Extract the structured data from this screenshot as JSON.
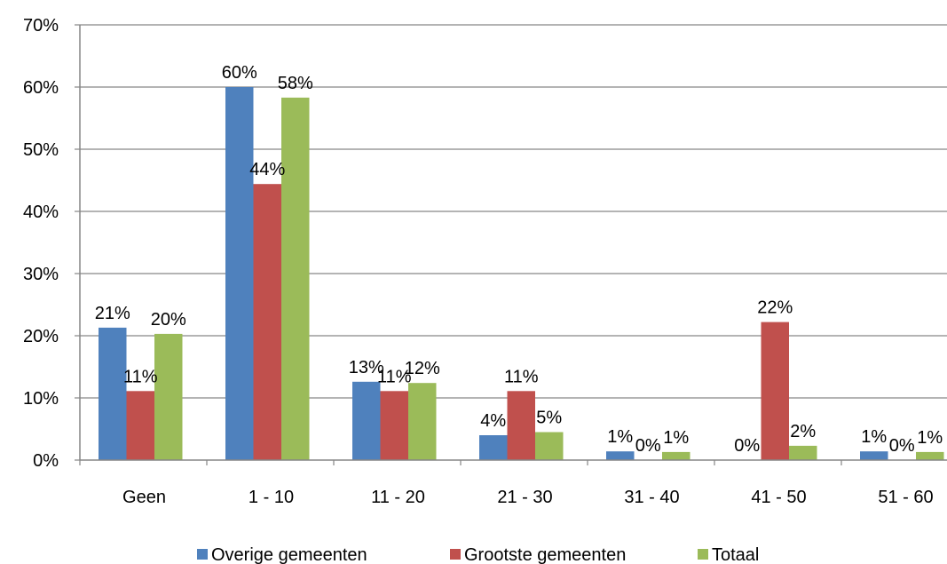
{
  "chart_data": {
    "type": "bar",
    "categories": [
      "Geen",
      "1 - 10",
      "11 - 20",
      "21 - 30",
      "31 - 40",
      "41 - 50",
      "51 - 60"
    ],
    "series": [
      {
        "name": "Overige gemeenten",
        "color": "#4F81BD",
        "values": [
          21.3,
          60.0,
          12.6,
          4.0,
          1.4,
          0.0,
          1.4
        ],
        "labels": [
          "21%",
          "60%",
          "13%",
          "4%",
          "1%",
          "0%",
          "1%"
        ]
      },
      {
        "name": "Grootste gemeenten",
        "color": "#C0504D",
        "values": [
          11.1,
          44.4,
          11.1,
          11.1,
          0.0,
          22.2,
          0.0
        ],
        "labels": [
          "11%",
          "44%",
          "11%",
          "11%",
          "0%",
          "22%",
          "0%"
        ]
      },
      {
        "name": "Totaal",
        "color": "#9BBB59",
        "values": [
          20.3,
          58.3,
          12.4,
          4.5,
          1.3,
          2.3,
          1.3
        ],
        "labels": [
          "20%",
          "58%",
          "12%",
          "5%",
          "1%",
          "2%",
          "1%"
        ]
      }
    ],
    "y_ticks": [
      "0%",
      "10%",
      "20%",
      "30%",
      "40%",
      "50%",
      "60%",
      "70%"
    ],
    "ylim": [
      0,
      70
    ],
    "grid": true,
    "legend_position": "bottom"
  }
}
